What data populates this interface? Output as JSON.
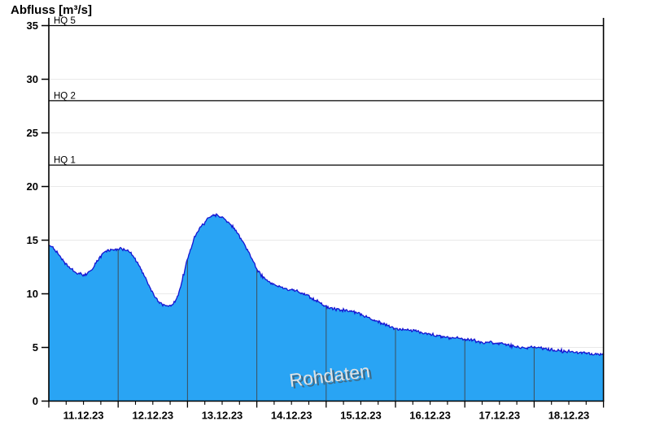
{
  "title": "Abfluss [m³/s]",
  "watermark": "Rohdaten",
  "chart_data": {
    "type": "area",
    "title": "Abfluss [m³/s]",
    "ylabel": "Abfluss [m³/s]",
    "xlabel": "",
    "ylim": [
      0,
      35.7
    ],
    "y_ticks": [
      0,
      5,
      10,
      15,
      20,
      25,
      30,
      35
    ],
    "x_tick_labels": [
      "11.12.23",
      "12.12.23",
      "13.12.23",
      "14.12.23",
      "15.12.23",
      "16.12.23",
      "17.12.23",
      "18.12.23"
    ],
    "x_range_days": 8,
    "minor_ticks_per_day": 4,
    "grid": "horizontal light gridlines every 5 units; dark vertical day separators inside filled area",
    "legend_position": "none",
    "reference_lines": [
      {
        "label": "HQ 5",
        "value": 35
      },
      {
        "label": "HQ 2",
        "value": 28
      },
      {
        "label": "HQ 1",
        "value": 22
      }
    ],
    "series": [
      {
        "name": "Rohdaten",
        "unit": "m³/s",
        "points": [
          [
            0.0,
            14.55
          ],
          [
            0.06,
            14.35
          ],
          [
            0.12,
            13.9
          ],
          [
            0.18,
            13.35
          ],
          [
            0.24,
            12.8
          ],
          [
            0.3,
            12.4
          ],
          [
            0.36,
            12.1
          ],
          [
            0.41,
            11.9
          ],
          [
            0.47,
            11.78
          ],
          [
            0.53,
            11.8
          ],
          [
            0.59,
            12.1
          ],
          [
            0.65,
            12.55
          ],
          [
            0.71,
            13.15
          ],
          [
            0.77,
            13.65
          ],
          [
            0.83,
            14.0
          ],
          [
            0.88,
            14.1
          ],
          [
            0.94,
            14.15
          ],
          [
            1.0,
            14.2
          ],
          [
            1.06,
            14.2
          ],
          [
            1.12,
            14.05
          ],
          [
            1.18,
            13.75
          ],
          [
            1.24,
            13.3
          ],
          [
            1.29,
            12.75
          ],
          [
            1.35,
            12.05
          ],
          [
            1.41,
            11.25
          ],
          [
            1.47,
            10.45
          ],
          [
            1.53,
            9.75
          ],
          [
            1.59,
            9.25
          ],
          [
            1.65,
            8.95
          ],
          [
            1.71,
            8.85
          ],
          [
            1.76,
            8.9
          ],
          [
            1.82,
            9.25
          ],
          [
            1.86,
            9.8
          ],
          [
            1.9,
            10.6
          ],
          [
            1.94,
            11.6
          ],
          [
            1.98,
            12.7
          ],
          [
            2.02,
            13.6
          ],
          [
            2.06,
            14.45
          ],
          [
            2.1,
            15.15
          ],
          [
            2.15,
            15.8
          ],
          [
            2.2,
            16.35
          ],
          [
            2.25,
            16.75
          ],
          [
            2.3,
            17.05
          ],
          [
            2.35,
            17.25
          ],
          [
            2.4,
            17.3
          ],
          [
            2.45,
            17.25
          ],
          [
            2.5,
            17.1
          ],
          [
            2.55,
            16.9
          ],
          [
            2.6,
            16.6
          ],
          [
            2.66,
            16.2
          ],
          [
            2.71,
            15.75
          ],
          [
            2.76,
            15.25
          ],
          [
            2.82,
            14.65
          ],
          [
            2.87,
            14.05
          ],
          [
            2.92,
            13.45
          ],
          [
            2.96,
            12.9
          ],
          [
            3.0,
            12.3
          ],
          [
            3.06,
            11.75
          ],
          [
            3.12,
            11.4
          ],
          [
            3.18,
            11.1
          ],
          [
            3.24,
            10.9
          ],
          [
            3.29,
            10.75
          ],
          [
            3.35,
            10.6
          ],
          [
            3.41,
            10.5
          ],
          [
            3.47,
            10.4
          ],
          [
            3.53,
            10.3
          ],
          [
            3.59,
            10.2
          ],
          [
            3.65,
            10.05
          ],
          [
            3.71,
            9.9
          ],
          [
            3.76,
            9.7
          ],
          [
            3.82,
            9.5
          ],
          [
            3.88,
            9.3
          ],
          [
            3.94,
            9.05
          ],
          [
            4.0,
            8.85
          ],
          [
            4.06,
            8.65
          ],
          [
            4.12,
            8.55
          ],
          [
            4.18,
            8.5
          ],
          [
            4.24,
            8.48
          ],
          [
            4.29,
            8.42
          ],
          [
            4.35,
            8.38
          ],
          [
            4.41,
            8.32
          ],
          [
            4.47,
            8.18
          ],
          [
            4.53,
            8.02
          ],
          [
            4.59,
            7.85
          ],
          [
            4.65,
            7.68
          ],
          [
            4.71,
            7.5
          ],
          [
            4.76,
            7.35
          ],
          [
            4.82,
            7.2
          ],
          [
            4.88,
            7.05
          ],
          [
            4.94,
            6.9
          ],
          [
            5.0,
            6.8
          ],
          [
            5.06,
            6.72
          ],
          [
            5.12,
            6.66
          ],
          [
            5.18,
            6.62
          ],
          [
            5.24,
            6.6
          ],
          [
            5.29,
            6.55
          ],
          [
            5.35,
            6.45
          ],
          [
            5.41,
            6.35
          ],
          [
            5.47,
            6.28
          ],
          [
            5.53,
            6.2
          ],
          [
            5.59,
            6.12
          ],
          [
            5.65,
            6.05
          ],
          [
            5.71,
            5.98
          ],
          [
            5.76,
            5.92
          ],
          [
            5.82,
            5.88
          ],
          [
            5.88,
            5.86
          ],
          [
            5.94,
            5.85
          ],
          [
            6.0,
            5.8
          ],
          [
            6.06,
            5.72
          ],
          [
            6.12,
            5.65
          ],
          [
            6.18,
            5.55
          ],
          [
            6.24,
            5.5
          ],
          [
            6.29,
            5.45
          ],
          [
            6.35,
            5.55
          ],
          [
            6.41,
            5.4
          ],
          [
            6.47,
            5.32
          ],
          [
            6.53,
            5.36
          ],
          [
            6.59,
            5.25
          ],
          [
            6.65,
            5.18
          ],
          [
            6.71,
            5.12
          ],
          [
            6.76,
            5.05
          ],
          [
            6.82,
            5.0
          ],
          [
            6.88,
            4.95
          ],
          [
            6.94,
            5.05
          ],
          [
            7.0,
            5.1
          ],
          [
            7.06,
            4.95
          ],
          [
            7.12,
            4.88
          ],
          [
            7.18,
            4.82
          ],
          [
            7.24,
            4.78
          ],
          [
            7.29,
            4.72
          ],
          [
            7.35,
            4.7
          ],
          [
            7.41,
            4.68
          ],
          [
            7.47,
            4.62
          ],
          [
            7.53,
            4.58
          ],
          [
            7.59,
            4.55
          ],
          [
            7.65,
            4.52
          ],
          [
            7.71,
            4.5
          ],
          [
            7.76,
            4.46
          ],
          [
            7.82,
            4.45
          ],
          [
            7.88,
            4.42
          ],
          [
            7.94,
            4.38
          ],
          [
            8.0,
            4.35
          ]
        ]
      }
    ],
    "colors": {
      "fill": "#29A4F4",
      "line": "#1414D2",
      "day_separator": "#3C4F5C",
      "reference_line": "#000000",
      "gridline": "#E9E9E9",
      "axis": "#000000",
      "watermark": "#E2E2E2"
    }
  }
}
